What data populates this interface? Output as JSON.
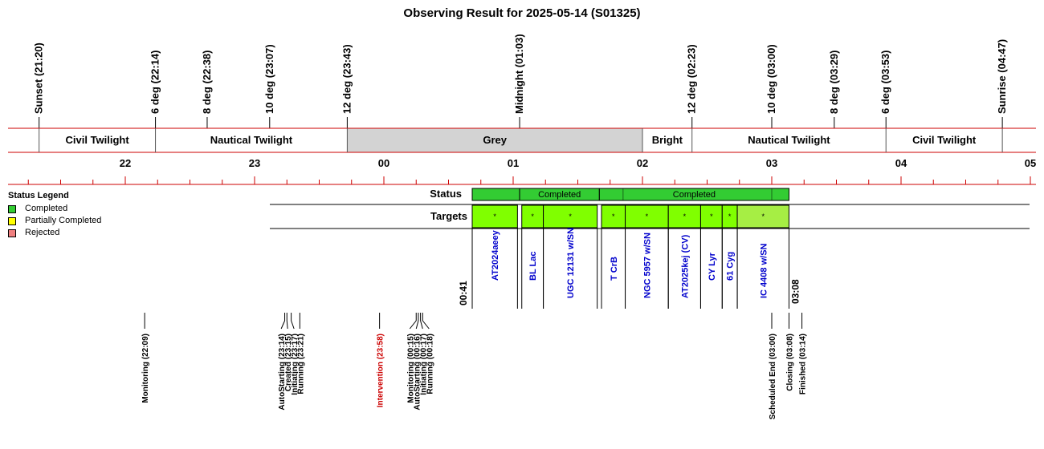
{
  "title": "Observing Result for 2025-05-14 (S01325)",
  "colors": {
    "completed": "#33cc33",
    "partially_completed": "#ffff00",
    "rejected": "#f08080",
    "target_fill": "#80ff00",
    "target_fill_light": "#a6ee44",
    "grey_band": "#d3d3d3",
    "red_line": "#cc0000",
    "event_black": "#000000",
    "event_red": "#cc0000",
    "target_label": "#0000cc"
  },
  "sun_events": [
    {
      "label": "Sunset (21:20)",
      "t": "21:20"
    },
    {
      "label": "6 deg (22:14)",
      "t": "22:14"
    },
    {
      "label": "8 deg (22:38)",
      "t": "22:38"
    },
    {
      "label": "10 deg (23:07)",
      "t": "23:07"
    },
    {
      "label": "12 deg (23:43)",
      "t": "23:43"
    },
    {
      "label": "Midnight (01:03)",
      "t": "01:03"
    },
    {
      "label": "12 deg (02:23)",
      "t": "02:23"
    },
    {
      "label": "10 deg (03:00)",
      "t": "03:00"
    },
    {
      "label": "8 deg (03:29)",
      "t": "03:29"
    },
    {
      "label": "6 deg (03:53)",
      "t": "03:53"
    },
    {
      "label": "Sunrise (04:47)",
      "t": "04:47"
    }
  ],
  "twilight_bands": [
    {
      "label": "Civil Twilight",
      "start": "21:20",
      "end": "22:14",
      "grey": false
    },
    {
      "label": "Nautical Twilight",
      "start": "22:14",
      "end": "23:43",
      "grey": false
    },
    {
      "label": "Grey",
      "start": "23:43",
      "end": "02:00",
      "grey": true
    },
    {
      "label": "Bright",
      "start": "02:00",
      "end": "02:23",
      "grey": false
    },
    {
      "label": "Nautical Twilight",
      "start": "02:23",
      "end": "03:53",
      "grey": false
    },
    {
      "label": "Civil Twilight",
      "start": "03:53",
      "end": "04:47",
      "grey": false
    }
  ],
  "hour_ticks": [
    "22",
    "23",
    "00",
    "01",
    "02",
    "03",
    "04",
    "05"
  ],
  "rows": {
    "status": "Status",
    "targets": "Targets"
  },
  "status_blocks": [
    {
      "start": "00:41",
      "end": "01:03",
      "label": "",
      "status": "completed"
    },
    {
      "start": "01:03",
      "end": "01:40",
      "label": "Completed",
      "status": "completed"
    },
    {
      "start": "01:40",
      "end": "03:08",
      "label": "Completed",
      "status": "completed"
    }
  ],
  "status_dividers": [
    "01:51",
    "03:00"
  ],
  "targets": [
    {
      "name": "AT2024aeey",
      "start": "00:41",
      "end": "01:02",
      "light": false
    },
    {
      "name": "BL Lac",
      "start": "01:04",
      "end": "01:14",
      "light": false
    },
    {
      "name": "UGC 12131 w/SN",
      "start": "01:14",
      "end": "01:39",
      "light": false
    },
    {
      "name": "T CrB",
      "start": "01:41",
      "end": "01:52",
      "light": false
    },
    {
      "name": "NGC 5957 w/SN",
      "start": "01:52",
      "end": "02:12",
      "light": false
    },
    {
      "name": "AT2025kej (CV)",
      "start": "02:12",
      "end": "02:27",
      "light": false
    },
    {
      "name": "CY Lyr",
      "start": "02:27",
      "end": "02:37",
      "light": false
    },
    {
      "name": "61 Cyg",
      "start": "02:37",
      "end": "02:44",
      "light": false
    },
    {
      "name": "IC 4408 w/SN",
      "start": "02:44",
      "end": "03:08",
      "light": true
    }
  ],
  "target_marker": "*",
  "window_labels": [
    {
      "label": "00:41",
      "t": "00:41"
    },
    {
      "label": "03:08",
      "t": "03:08"
    }
  ],
  "events": [
    {
      "label": "Monitoring (22:09)",
      "t": "22:09",
      "red": false
    },
    {
      "label": "AutoStarting (23:14)",
      "t": "23:14",
      "red": false
    },
    {
      "label": "Created (23:15)",
      "t": "23:15",
      "red": false
    },
    {
      "label": "Initiating (23:17)",
      "t": "23:17",
      "red": false
    },
    {
      "label": "Running (23:21)",
      "t": "23:21",
      "red": false
    },
    {
      "label": "Intervention (23:58)",
      "t": "23:58",
      "red": true
    },
    {
      "label": "Monitoring (00:15)",
      "t": "00:15",
      "red": false
    },
    {
      "label": "AutoStarting (00:16)",
      "t": "00:16",
      "red": false
    },
    {
      "label": "Initiating (00:17)",
      "t": "00:17",
      "red": false
    },
    {
      "label": "Running (00:18)",
      "t": "00:18",
      "red": false
    },
    {
      "label": "Scheduled End (03:00)",
      "t": "03:00",
      "red": false
    },
    {
      "label": "Closing (03:08)",
      "t": "03:08",
      "red": false
    },
    {
      "label": "Finished (03:14)",
      "t": "03:14",
      "red": false
    }
  ],
  "legend": {
    "title": "Status Legend",
    "items": [
      {
        "label": "Completed",
        "color": "#33cc33"
      },
      {
        "label": "Partially Completed",
        "color": "#ffff00"
      },
      {
        "label": "Rejected",
        "color": "#f08080"
      }
    ]
  }
}
